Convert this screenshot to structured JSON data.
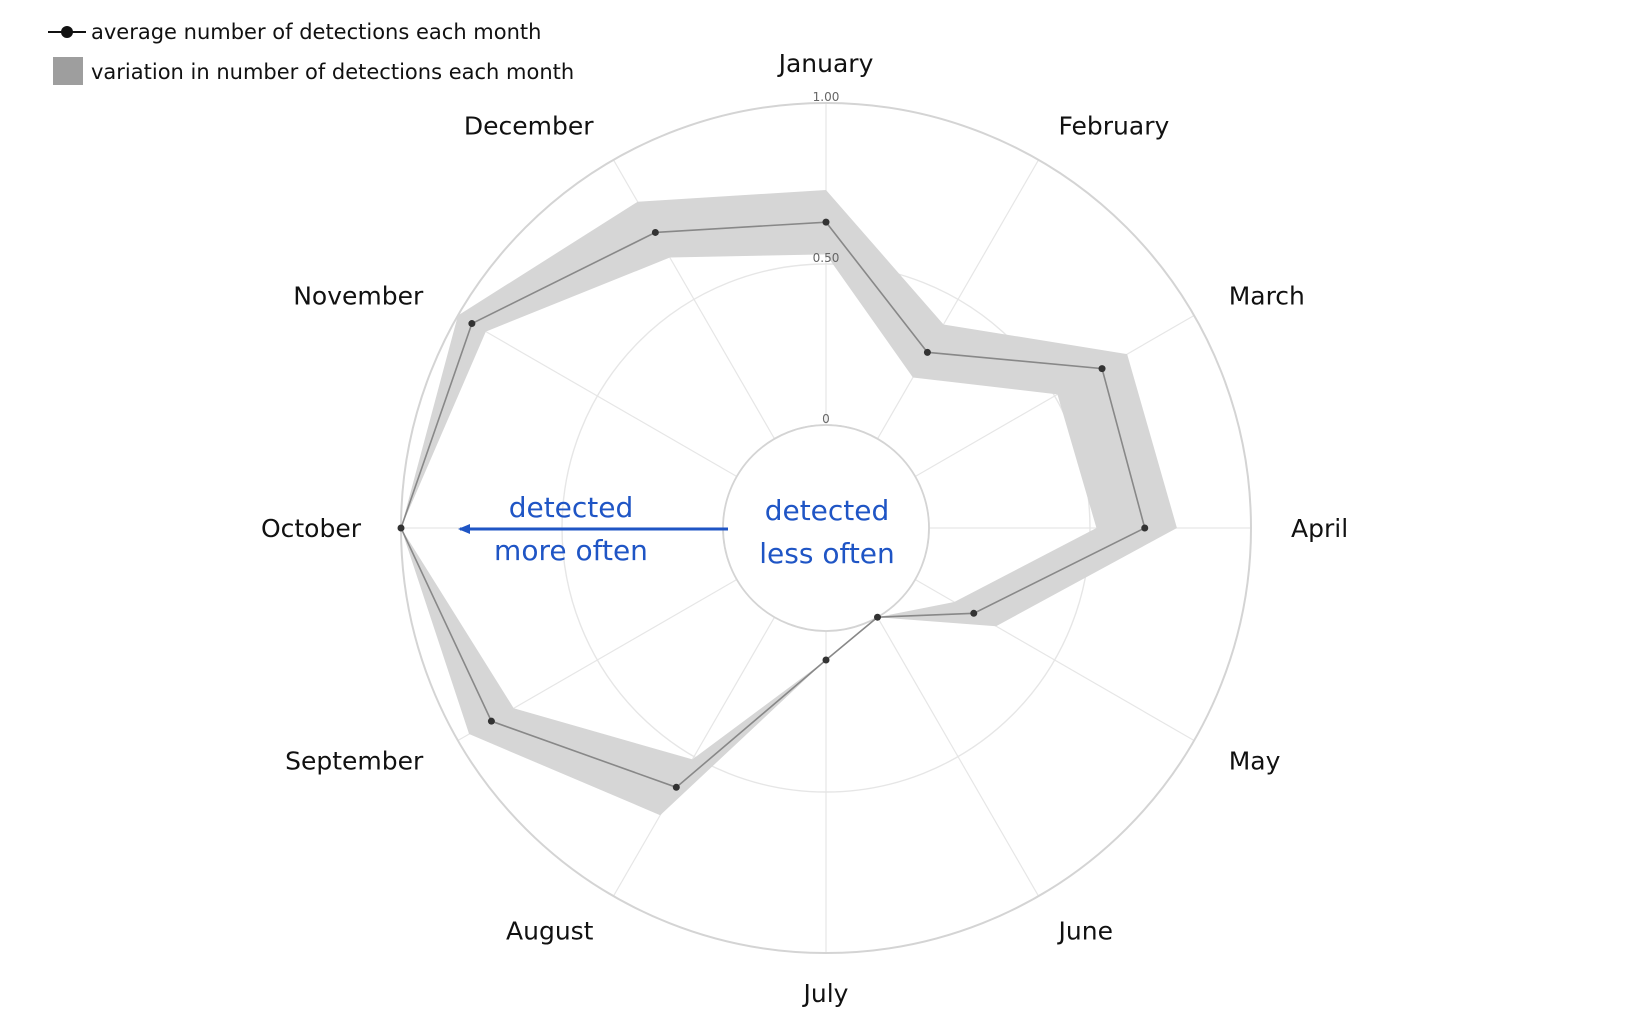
{
  "chart_data": {
    "type": "radar",
    "categories": [
      "January",
      "February",
      "March",
      "April",
      "May",
      "June",
      "July",
      "August",
      "September",
      "October",
      "November",
      "December"
    ],
    "series": [
      {
        "name": "average number of detections each month",
        "values": [
          0.63,
          0.31,
          0.67,
          0.67,
          0.21,
          0.0,
          0.09,
          0.61,
          0.88,
          1.0,
          0.95,
          0.74
        ]
      }
    ],
    "band": {
      "name": "variation in number of detections each month",
      "lower": [
        0.53,
        0.22,
        0.51,
        0.52,
        0.14,
        0.0,
        0.09,
        0.51,
        0.8,
        1.0,
        0.9,
        0.65
      ],
      "upper": [
        0.73,
        0.41,
        0.76,
        0.77,
        0.29,
        0.0,
        0.09,
        0.71,
        0.96,
        1.0,
        1.0,
        0.85
      ]
    },
    "r_ticks": [
      {
        "value": 0,
        "label": "0"
      },
      {
        "value": 0.5,
        "label": "0.50"
      },
      {
        "value": 1.0,
        "label": "1.00"
      }
    ],
    "rlim": [
      0,
      1.0
    ],
    "grid": true,
    "legend_position": "top-left",
    "colors": {
      "line": "#888888",
      "point": "#333333",
      "band": "#d6d6d6",
      "grid": "#e6e6e6",
      "annotation": "#1f55c5"
    },
    "annotations": {
      "outer_lines": [
        "detected",
        "more often"
      ],
      "inner_lines": [
        "detected",
        "less often"
      ]
    }
  }
}
